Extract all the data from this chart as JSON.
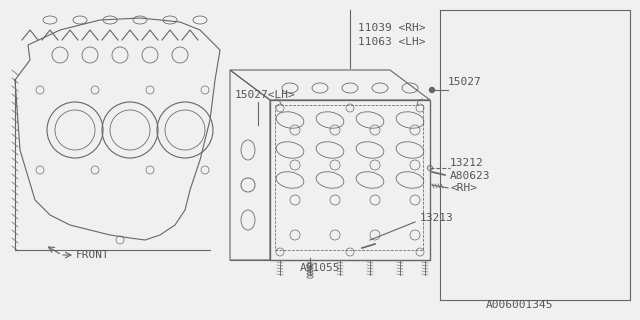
{
  "bg_color": "#f0f0f0",
  "line_color": "#666666",
  "text_color": "#555555",
  "title": "",
  "watermark": "A006001345",
  "labels": {
    "11039_rh": "11039 <RH>",
    "11063_lh": "11063 <LH>",
    "15027": "15027",
    "15027_lh": "15027<LH>",
    "13212": "13212",
    "a80623_rh": "A80623\n<RH>",
    "13213": "13213",
    "a91055": "A91055",
    "front": "FRONT"
  },
  "font_size": 7,
  "lw": 0.8
}
